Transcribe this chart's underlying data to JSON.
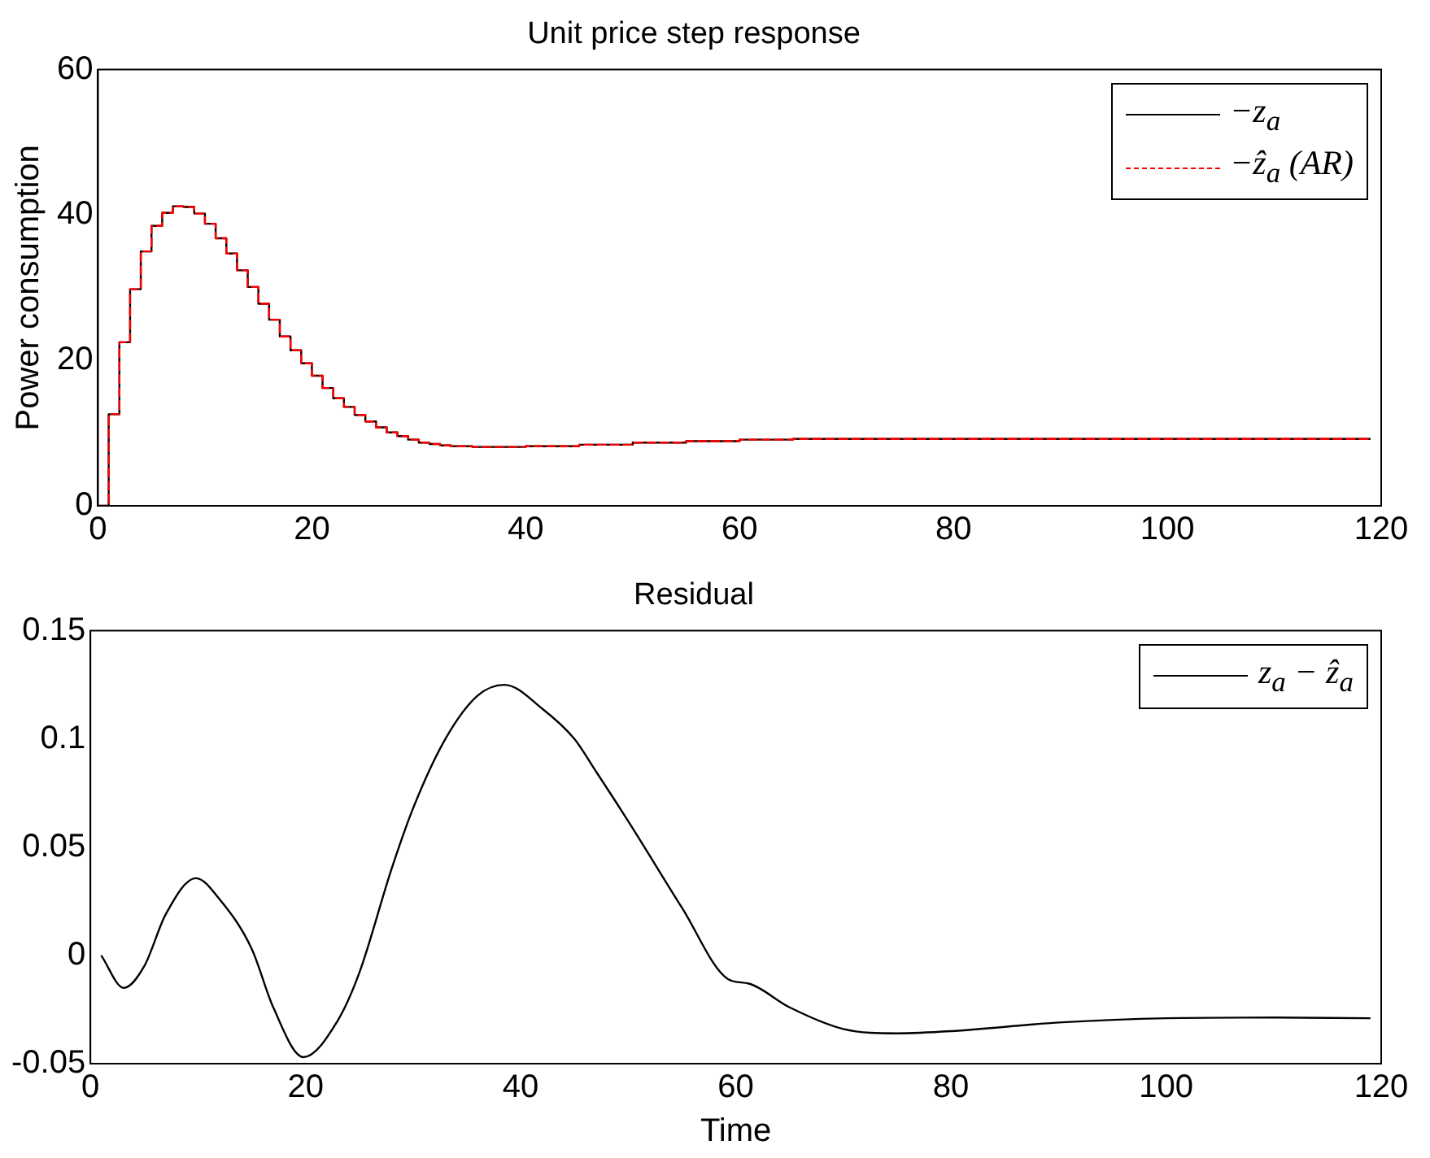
{
  "chart_data": [
    {
      "type": "step",
      "title": "Unit price step response",
      "ylabel": "Power consumption",
      "xlim": [
        0,
        120
      ],
      "xticks": [
        0,
        20,
        40,
        60,
        80,
        100,
        120
      ],
      "ylim": [
        0,
        60
      ],
      "yticks": [
        0,
        20,
        40,
        60
      ],
      "legend": "top right",
      "marker": "none",
      "x": [
        0,
        1,
        2,
        3,
        4,
        5,
        6,
        7,
        8,
        9,
        10,
        11,
        12,
        13,
        14,
        15,
        16,
        17,
        18,
        19,
        20,
        21,
        22,
        23,
        24,
        25,
        26,
        27,
        28,
        29,
        30,
        31,
        32,
        33,
        34,
        35,
        36,
        37,
        40,
        45,
        50,
        55,
        60,
        65,
        70,
        80,
        90,
        100,
        110,
        119
      ],
      "series": [
        {
          "name": "−z$_{a}$",
          "color": "#000000",
          "line_style": "solid",
          "values": [
            0,
            12.6,
            22.5,
            29.8,
            35.0,
            38.5,
            40.3,
            41.2,
            41.1,
            40.2,
            38.8,
            36.8,
            34.7,
            32.4,
            30.1,
            27.8,
            25.6,
            23.3,
            21.4,
            19.6,
            17.9,
            16.2,
            14.8,
            13.6,
            12.5,
            11.6,
            10.8,
            10.1,
            9.6,
            9.1,
            8.7,
            8.5,
            8.3,
            8.2,
            8.2,
            8.1,
            8.1,
            8.1,
            8.2,
            8.4,
            8.7,
            8.9,
            9.1,
            9.2,
            9.2,
            9.2,
            9.2,
            9.2,
            9.2,
            9.2
          ]
        },
        {
          "name": "−ẑ$_{a}$ (AR)",
          "color": "#ff0000",
          "line_style": "dashed",
          "values": [
            0,
            12.6,
            22.5,
            29.8,
            35.0,
            38.5,
            40.3,
            41.2,
            41.1,
            40.2,
            38.8,
            36.8,
            34.7,
            32.4,
            30.1,
            27.8,
            25.6,
            23.3,
            21.4,
            19.6,
            17.9,
            16.2,
            14.8,
            13.6,
            12.5,
            11.6,
            10.8,
            10.1,
            9.6,
            9.1,
            8.7,
            8.5,
            8.3,
            8.2,
            8.2,
            8.1,
            8.1,
            8.1,
            8.2,
            8.4,
            8.7,
            8.9,
            9.1,
            9.2,
            9.2,
            9.2,
            9.2,
            9.2,
            9.2,
            9.2
          ]
        }
      ]
    },
    {
      "type": "line",
      "title": "Residual",
      "xlabel": "Time",
      "xlim": [
        0,
        120
      ],
      "xticks": [
        0,
        20,
        40,
        60,
        80,
        100,
        120
      ],
      "ylim": [
        -0.05,
        0.15
      ],
      "yticks": [
        -0.05,
        0,
        0.05,
        0.1,
        0.15
      ],
      "legend": "top right",
      "marker": "none",
      "x": [
        1,
        3.1,
        5,
        7,
        9.8,
        12,
        15,
        17,
        19.8,
        23,
        25,
        28,
        30,
        33,
        36,
        38.5,
        42,
        45,
        47,
        50,
        55,
        59.3,
        61.2,
        65,
        70,
        75,
        80,
        90,
        100,
        110,
        119
      ],
      "series": [
        {
          "name": "z$_{a}$ − ẑ$_{a}$",
          "color": "#000000",
          "line_style": "solid",
          "values": [
            0,
            -0.015,
            -0.005,
            0.019,
            0.0357,
            0.026,
            0.003,
            -0.024,
            -0.047,
            -0.03,
            -0.008,
            0.04,
            0.068,
            0.1,
            0.12,
            0.125,
            0.114,
            0.1,
            0.085,
            0.062,
            0.022,
            -0.011,
            -0.013,
            -0.024,
            -0.034,
            -0.036,
            -0.035,
            -0.031,
            -0.029,
            -0.0287,
            -0.029
          ]
        }
      ]
    }
  ]
}
